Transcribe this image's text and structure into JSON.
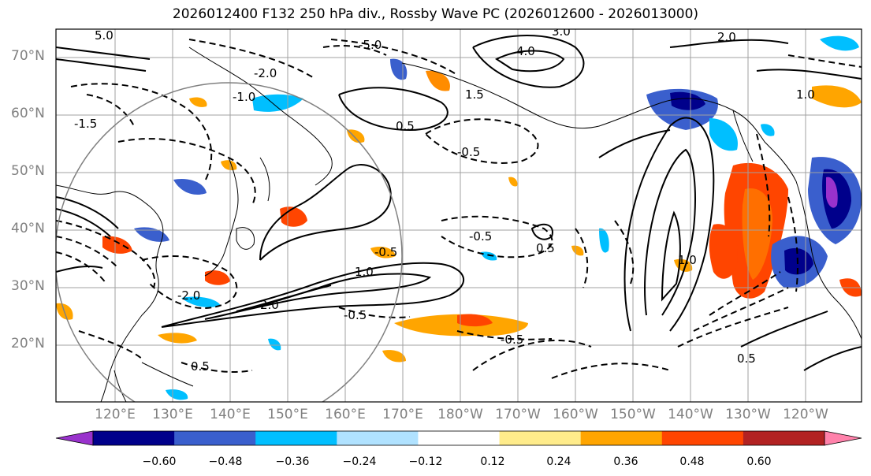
{
  "title": "2026012400 F132 250 hPa div., Rossby Wave PC (2026012600 - 2026013000)",
  "lat_labels": [
    "70°N",
    "60°N",
    "50°N",
    "40°N",
    "30°N",
    "20°N"
  ],
  "lon_labels": [
    "120°E",
    "130°E",
    "140°E",
    "150°E",
    "160°E",
    "170°E",
    "180°W",
    "170°W",
    "160°W",
    "150°W",
    "140°W",
    "130°W",
    "120°W"
  ],
  "colorbar": {
    "ticks": [
      "−0.60",
      "−0.48",
      "−0.36",
      "−0.24",
      "−0.12",
      "0.12",
      "0.24",
      "0.36",
      "0.48",
      "0.60"
    ],
    "colors": [
      "#9932cc",
      "#00008b",
      "#3a5fcd",
      "#00bfff",
      "#b0e2ff",
      "#ffffff",
      "#ffec8b",
      "#ffa500",
      "#ff4500",
      "#b22222",
      "#ff82ab"
    ]
  },
  "contour_labels": [
    "5.0",
    "-5.0",
    "3.0",
    "4.0",
    "2.0",
    "-2.0",
    "1.0",
    "-1.0",
    "1.5",
    "-1.5",
    "0.5",
    "-0.5",
    "-0.5",
    "-0.5",
    "0.5",
    "1.0",
    "2.0",
    "-2.0",
    "-0.5",
    "1.0",
    "-0.5",
    "0.5",
    "0.5"
  ]
}
